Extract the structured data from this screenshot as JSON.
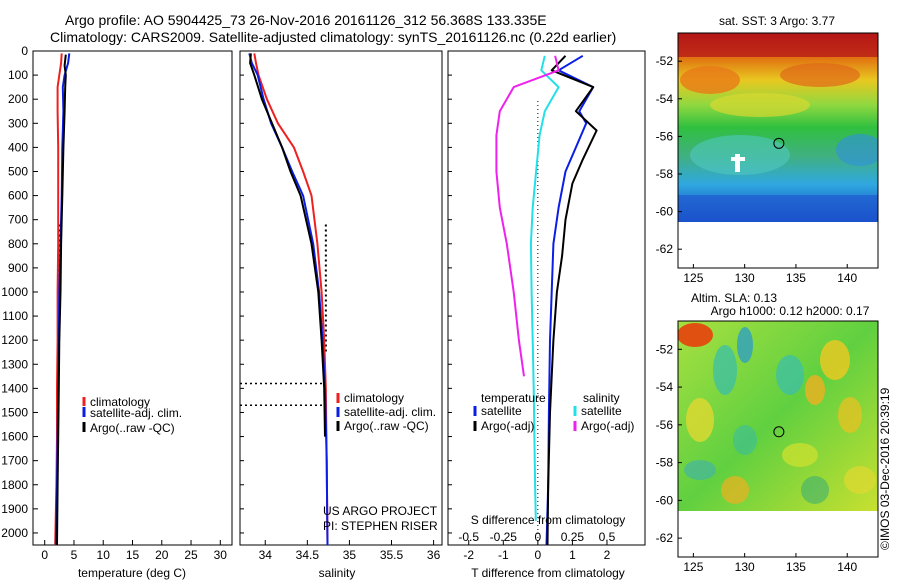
{
  "header": {
    "line1": "Argo profile: AO 5904425_73 26-Nov-2016 20161126_312 56.368S 133.335E",
    "line2": "Climatology: CARS2009. Satellite-adjusted climatology: synTS_20161126.nc (0.22d earlier)"
  },
  "footer": {
    "project": "US ARGO PROJECT",
    "pi": "PI: STEPHEN RISER",
    "stamp": "©IMOS 03-Dec-2016 20:39:19"
  },
  "colors": {
    "climatology": "#ee2020",
    "satellite": "#0a1ee6",
    "argo": "#000000",
    "salinity_satellite": "#22e0e8",
    "salinity_argo": "#ee22ee"
  },
  "chart_data": [
    {
      "id": "temperature",
      "type": "line",
      "xlabel": "temperature (deg C)",
      "ylabel": "",
      "xlim": [
        -2,
        32
      ],
      "ylim": [
        2050,
        0
      ],
      "xticks": [
        0,
        5,
        10,
        15,
        20,
        25,
        30
      ],
      "yticks": [
        0,
        100,
        200,
        300,
        400,
        500,
        600,
        700,
        800,
        900,
        1000,
        1100,
        1200,
        1300,
        1400,
        1500,
        1600,
        1700,
        1800,
        1900,
        2000
      ],
      "legend": [
        "climatology",
        "satellite-adj. clim.",
        "Argo(..raw -QC)"
      ],
      "legend_position": "lower-right",
      "series": [
        {
          "name": "climatology",
          "color": "#ee2020",
          "x": [
            2.9,
            2.8,
            2.5,
            2.2,
            2.2,
            2.3,
            2.3,
            2.3,
            2.2,
            2.2,
            2.1,
            2.1,
            2.0,
            1.8
          ],
          "y": [
            10,
            50,
            100,
            150,
            250,
            400,
            600,
            800,
            1000,
            1200,
            1400,
            1600,
            1800,
            2050
          ]
        },
        {
          "name": "satellite-adj. clim.",
          "color": "#0a1ee6",
          "x": [
            4.2,
            4.0,
            3.4,
            3.1,
            3.2,
            3.0,
            2.9,
            2.7,
            2.5,
            2.4,
            2.3,
            2.2,
            2.1,
            1.9
          ],
          "y": [
            10,
            50,
            100,
            150,
            250,
            400,
            600,
            800,
            1000,
            1200,
            1400,
            1600,
            1800,
            2050
          ]
        },
        {
          "name": "Argo(..raw -QC)",
          "color": "#000000",
          "x": [
            3.6,
            3.4,
            3.6,
            3.5,
            3.4,
            3.2,
            3.0,
            2.8,
            2.7,
            2.5,
            2.4,
            2.3,
            2.2,
            2.1
          ],
          "y": [
            15,
            60,
            100,
            150,
            250,
            400,
            600,
            800,
            1000,
            1200,
            1400,
            1600,
            1800,
            2050
          ]
        }
      ],
      "dotted": {
        "x": [
          2.5,
          2.5
        ],
        "y": [
          720,
          1200
        ]
      }
    },
    {
      "id": "salinity",
      "type": "line",
      "xlabel": "salinity",
      "ylabel": "",
      "xlim": [
        33.7,
        36.1
      ],
      "ylim": [
        2050,
        0
      ],
      "xticks": [
        34,
        34.5,
        35,
        35.5,
        36
      ],
      "legend": [
        "climatology",
        "satellite-adj. clim.",
        "Argo(..raw -QC)"
      ],
      "legend_position": "lower-right",
      "series": [
        {
          "name": "climatology",
          "color": "#ee2020",
          "x": [
            33.87,
            33.89,
            33.92,
            34.02,
            34.15,
            34.34,
            34.45,
            34.55,
            34.62,
            34.67,
            34.7,
            34.72,
            34.73,
            34.74
          ],
          "y": [
            10,
            50,
            100,
            200,
            300,
            400,
            500,
            600,
            800,
            1000,
            1200,
            1400,
            1700,
            2050
          ]
        },
        {
          "name": "satellite-adj. clim.",
          "color": "#0a1ee6",
          "x": [
            33.81,
            33.84,
            33.91,
            33.98,
            34.07,
            34.2,
            34.32,
            34.45,
            34.57,
            34.64,
            34.68,
            34.71,
            34.73,
            34.74
          ],
          "y": [
            10,
            50,
            100,
            200,
            300,
            400,
            500,
            600,
            800,
            1000,
            1200,
            1400,
            1700,
            2050
          ]
        },
        {
          "name": "Argo(..raw -QC)",
          "color": "#000000",
          "x": [
            33.83,
            33.82,
            33.87,
            33.96,
            34.08,
            34.2,
            34.3,
            34.42,
            34.55,
            34.63,
            34.67,
            34.7,
            34.71
          ],
          "y": [
            10,
            50,
            100,
            200,
            300,
            400,
            500,
            600,
            800,
            1000,
            1200,
            1400,
            1600
          ]
        }
      ],
      "dotted": {
        "x": [
          34.72,
          34.72
        ],
        "y": [
          720,
          1250
        ]
      },
      "dotted_h": [
        {
          "x": [
            33.7,
            34.72
          ],
          "y": 1380
        },
        {
          "x": [
            33.7,
            34.72
          ],
          "y": 1470
        }
      ]
    },
    {
      "id": "difference",
      "type": "line",
      "xlabel": "T difference from climatology",
      "xlabel_top": "S difference from climatology",
      "xlim": [
        -2.6,
        3.1
      ],
      "ylim": [
        2050,
        0
      ],
      "xticks": [
        -2,
        -1,
        0,
        1,
        2
      ],
      "sticks": [
        -0.5,
        -0.25,
        0,
        0.25,
        0.5
      ],
      "legend_t_title": "temperature",
      "legend_s_title": "salinity",
      "legend_t": [
        "satellite",
        "Argo(-adj)"
      ],
      "legend_s": [
        "satellite",
        "Argo(-adj)"
      ],
      "series": [
        {
          "name": "T satellite",
          "color": "#0a1ee6",
          "x": [
            1.3,
            0.6,
            1.6,
            1.2,
            1.4,
            1.1,
            0.8,
            0.6,
            0.45,
            0.4,
            0.35,
            0.32,
            0.3,
            0.25
          ],
          "y": [
            20,
            80,
            150,
            250,
            300,
            400,
            500,
            650,
            800,
            1000,
            1200,
            1500,
            1800,
            2050
          ]
        },
        {
          "name": "T Argo",
          "color": "#000000",
          "x": [
            0.8,
            0.4,
            1.6,
            1.1,
            1.7,
            1.3,
            1.0,
            0.8,
            0.7,
            0.55,
            0.45,
            0.35,
            0.3,
            0.28
          ],
          "y": [
            20,
            80,
            150,
            250,
            330,
            450,
            550,
            700,
            850,
            1000,
            1200,
            1500,
            1800,
            2050
          ]
        },
        {
          "name": "S satellite",
          "color": "#22e0e8",
          "x": [
            0.2,
            0.1,
            0.6,
            0.2,
            0.05,
            -0.05,
            -0.15,
            -0.2,
            -0.18,
            -0.15,
            -0.12,
            -0.1,
            -0.08,
            -0.06
          ],
          "y": [
            20,
            80,
            150,
            250,
            350,
            500,
            650,
            800,
            1000,
            1200,
            1400,
            1600,
            1800,
            1950
          ]
        },
        {
          "name": "S Argo",
          "color": "#ee22ee",
          "x": [
            0.5,
            0.6,
            -0.7,
            -1.1,
            -1.2,
            -1.2,
            -1.1,
            -0.9,
            -0.7,
            -0.55,
            -0.4
          ],
          "y": [
            20,
            80,
            150,
            250,
            350,
            500,
            650,
            800,
            1000,
            1200,
            1350
          ]
        }
      ]
    }
  ],
  "maps": {
    "sst": {
      "title": "sat. SST: 3 Argo: 3.77",
      "xticks": [
        125,
        130,
        135,
        140
      ],
      "yticks": [
        -52,
        -54,
        -56,
        -58,
        -60,
        -62
      ],
      "xlim": [
        123.5,
        143
      ],
      "ylim": [
        -63,
        -50.5
      ],
      "marker": {
        "lon": 133.335,
        "lat": -56.368
      }
    },
    "sla": {
      "title": "Altim. SLA: 0.13",
      "subtitle": "Argo h1000: 0.12 h2000: 0.17",
      "xticks": [
        125,
        130,
        135,
        140
      ],
      "yticks": [
        -52,
        -54,
        -56,
        -58,
        -60,
        -62
      ],
      "xlim": [
        123.5,
        143
      ],
      "ylim": [
        -63,
        -50.5
      ],
      "marker": {
        "lon": 133.335,
        "lat": -56.368
      }
    }
  }
}
